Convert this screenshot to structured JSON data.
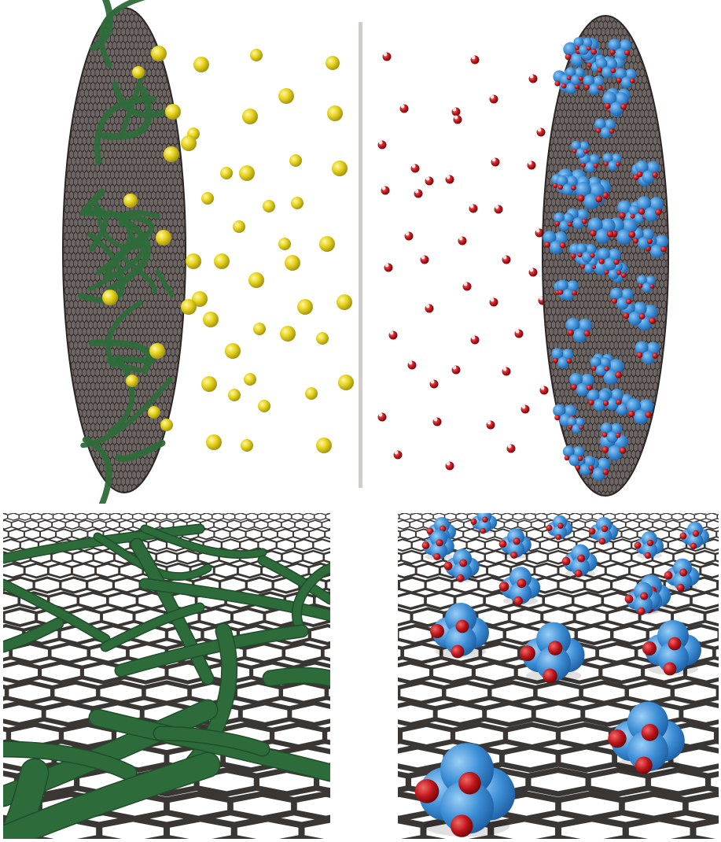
{
  "figure": {
    "colors": {
      "graphene_line": "#3a3634",
      "disk_fill": "#6e6664",
      "polymer_green": "#2e6b3a",
      "ion_yellow": "#e6d21e",
      "cluster_blue": "#3d8fd6",
      "oxygen_red": "#c0161c",
      "separator": "#d0ccc8"
    },
    "panels": [
      {
        "id": "top",
        "content": "electrode-disks-with-ions"
      },
      {
        "id": "bottom-left",
        "content": "graphene-with-polymer-strands"
      },
      {
        "id": "bottom-right",
        "content": "graphene-with-oxide-clusters"
      }
    ]
  }
}
